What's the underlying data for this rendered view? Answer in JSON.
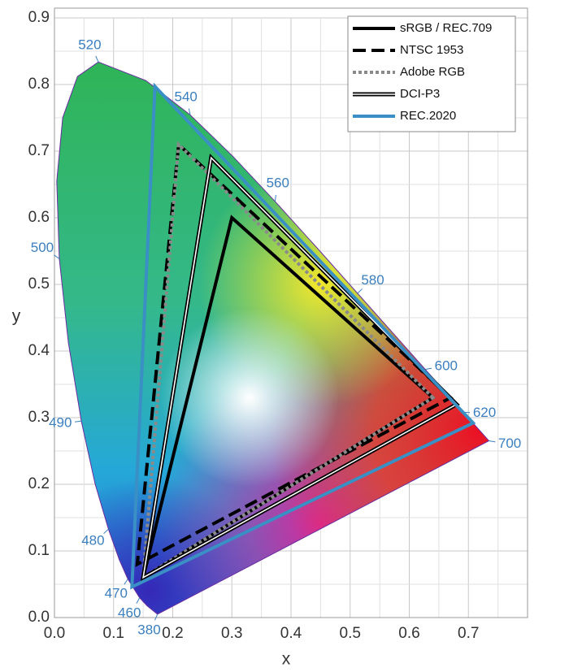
{
  "chart_data": {
    "type": "line",
    "x_label": "x",
    "y_label": "y",
    "xlim": [
      0,
      0.8
    ],
    "ylim": [
      0,
      0.9
    ],
    "xticks": [
      {
        "value": 0,
        "label": "0.0"
      },
      {
        "value": 0.1,
        "label": "0.1"
      },
      {
        "value": 0.2,
        "label": "0.2"
      },
      {
        "value": 0.3,
        "label": "0.3"
      },
      {
        "value": 0.4,
        "label": "0.4"
      },
      {
        "value": 0.5,
        "label": "0.5"
      },
      {
        "value": 0.6,
        "label": "0.6"
      },
      {
        "value": 0.7,
        "label": "0.7"
      }
    ],
    "yticks": [
      {
        "value": 0,
        "label": "0.0"
      },
      {
        "value": 0.1,
        "label": "0.1"
      },
      {
        "value": 0.2,
        "label": "0.2"
      },
      {
        "value": 0.3,
        "label": "0.3"
      },
      {
        "value": 0.4,
        "label": "0.4"
      },
      {
        "value": 0.5,
        "label": "0.5"
      },
      {
        "value": 0.6,
        "label": "0.6"
      },
      {
        "value": 0.7,
        "label": "0.7"
      },
      {
        "value": 0.8,
        "label": "0.8"
      },
      {
        "value": 0.9,
        "label": "0.9"
      }
    ],
    "grid": true,
    "legend": "upper right",
    "spectral_locus": {
      "color": "#6a2ca0",
      "wavelengths": [
        380,
        null,
        460,
        470,
        null,
        480,
        null,
        490,
        null,
        500,
        null,
        null,
        null,
        520,
        null,
        540,
        null,
        560,
        null,
        580,
        null,
        600,
        620,
        null,
        700
      ],
      "x": [
        0.1741,
        0.1566,
        0.144,
        0.1241,
        0.1096,
        0.0913,
        0.0687,
        0.0454,
        0.0235,
        0.0082,
        0.0039,
        0.0139,
        0.0389,
        0.0743,
        0.1547,
        0.2296,
        0.3016,
        0.3731,
        0.4441,
        0.5125,
        0.5752,
        0.627,
        0.6915,
        0.719,
        0.7347
      ],
      "y": [
        0.005,
        0.0177,
        0.0297,
        0.0578,
        0.0868,
        0.1327,
        0.2007,
        0.295,
        0.4127,
        0.5384,
        0.6548,
        0.7502,
        0.812,
        0.8338,
        0.8059,
        0.7543,
        0.6923,
        0.6245,
        0.5547,
        0.4866,
        0.4242,
        0.3725,
        0.3083,
        0.2809,
        0.2653
      ]
    },
    "series": [
      {
        "name": "sRGB / REC.709",
        "color": "#000000",
        "style": "solid",
        "x": [
          0.64,
          0.3,
          0.15
        ],
        "y": [
          0.33,
          0.6,
          0.06
        ]
      },
      {
        "name": "NTSC 1953",
        "color": "#000000",
        "style": "dashed",
        "x": [
          0.67,
          0.21,
          0.14
        ],
        "y": [
          0.33,
          0.71,
          0.08
        ]
      },
      {
        "name": "Adobe RGB",
        "color": "#8a8a8a",
        "style": "dotted",
        "x": [
          0.64,
          0.21,
          0.15
        ],
        "y": [
          0.33,
          0.71,
          0.06
        ]
      },
      {
        "name": "DCI-P3",
        "color": "#000000",
        "style": "double",
        "x": [
          0.68,
          0.265,
          0.15
        ],
        "y": [
          0.32,
          0.69,
          0.06
        ]
      },
      {
        "name": "REC.2020",
        "color": "#3a8fc4",
        "style": "solid",
        "x": [
          0.708,
          0.17,
          0.131
        ],
        "y": [
          0.292,
          0.797,
          0.046
        ]
      }
    ]
  }
}
